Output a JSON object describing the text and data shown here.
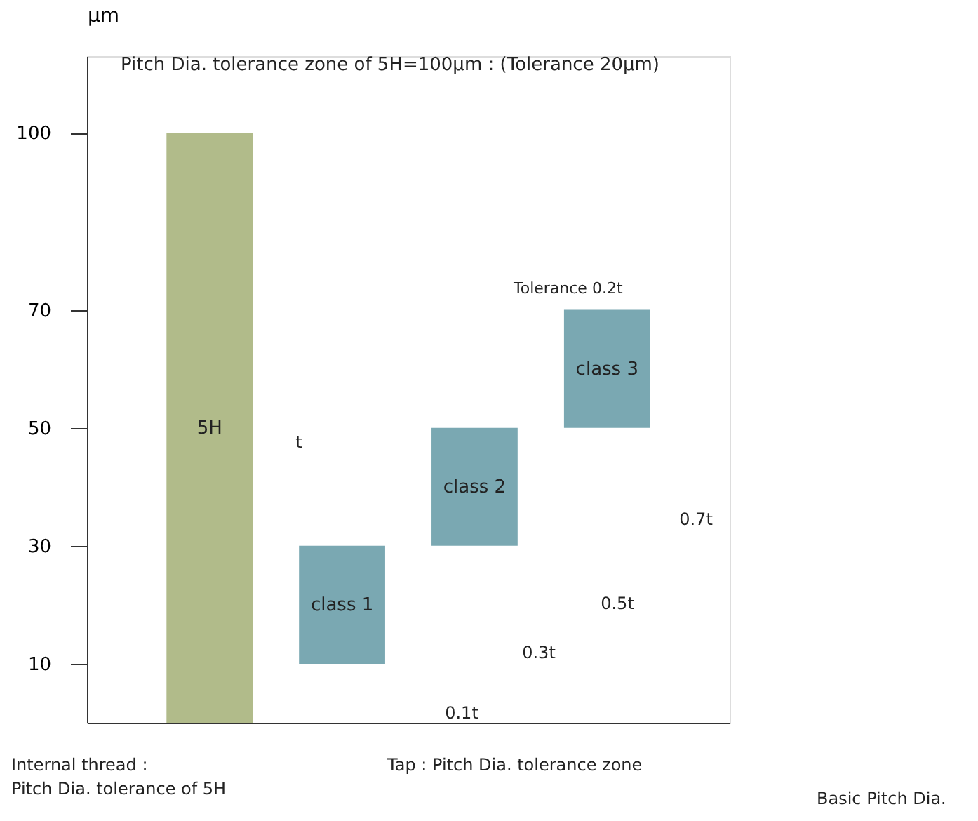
{
  "chart_data": {
    "type": "bar",
    "title": "Pitch Dia. tolerance zone of 5H=100μm : (Tolerance 20μm)",
    "ylabel": "μm",
    "categories": [
      "5H",
      "class 1",
      "class 2",
      "class 3"
    ],
    "base": [
      0,
      10,
      30,
      50
    ],
    "values": [
      100,
      20,
      20,
      20
    ],
    "colors": [
      "#b1bb8a",
      "#7aa8b2",
      "#7aa8b2",
      "#7aa8b2"
    ],
    "ylim": [
      0,
      113
    ],
    "yticks": [
      10,
      30,
      50,
      70,
      100
    ],
    "grid": false,
    "tick_labels": "y",
    "annotations": [
      "t",
      "0.1t",
      "0.3t",
      "0.5t",
      "0.7t",
      "Tolerance 0.2t",
      "Internal thread :\nPitch Dia. tolerance of 5H",
      "Tap : Pitch Dia. tolerance zone",
      "Basic Pitch Dia."
    ]
  }
}
